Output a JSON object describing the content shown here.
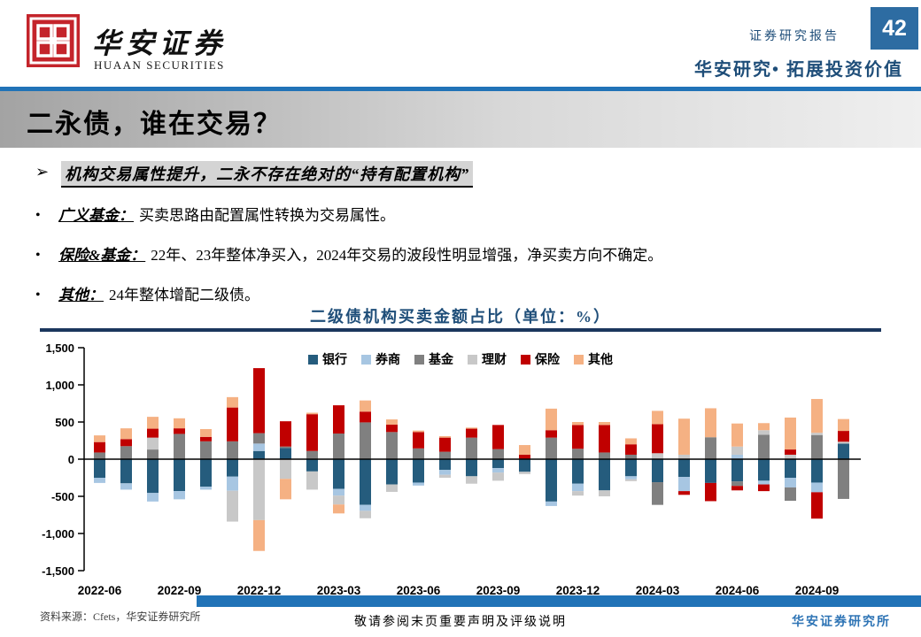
{
  "header": {
    "brand_cn": "华安证券",
    "brand_en": "HUAAN SECURITIES",
    "report_type": "证券研究报告",
    "page_number": "42",
    "tagline": "华安研究• 拓展投资价值"
  },
  "title": "二永债，谁在交易？",
  "bullets": {
    "lead_marker": "➢",
    "lead": "机构交易属性提升，二永不存在绝对的“持有配置机构”",
    "dot": "•",
    "items": [
      {
        "label": "广义基金：",
        "text": "买卖思路由配置属性转换为交易属性。"
      },
      {
        "label": "保险&基金：",
        "text": "22年、23年整体净买入，2024年交易的波段性明显增强，净买卖方向不确定。"
      },
      {
        "label": "其他：",
        "text": "24年整体增配二级债。"
      }
    ]
  },
  "chart_data": {
    "type": "bar",
    "stacked": true,
    "title": "二级债机构买卖金额占比（单位：%）",
    "ylim": [
      -1500,
      1500
    ],
    "y_ticks": [
      1500,
      1000,
      500,
      0,
      -500,
      -1000,
      -1500
    ],
    "y_tick_labels": [
      "1,500",
      "1,000",
      "500",
      "0",
      "-500",
      "-1,000",
      "-1,500"
    ],
    "grid": false,
    "legend_position": "top",
    "categories": [
      "2022-06",
      "2022-07",
      "2022-08",
      "2022-09",
      "2022-10",
      "2022-11",
      "2022-12",
      "2023-01",
      "2023-02",
      "2023-03",
      "2023-04",
      "2023-05",
      "2023-06",
      "2023-07",
      "2023-08",
      "2023-09",
      "2023-10",
      "2023-11",
      "2023-12",
      "2024-01",
      "2024-02",
      "2024-03",
      "2024-04",
      "2024-05",
      "2024-06",
      "2024-07",
      "2024-08",
      "2024-09",
      "2024-10"
    ],
    "x_tick_labels": [
      "2022-06",
      "2022-09",
      "2022-12",
      "2023-03",
      "2023-06",
      "2023-09",
      "2023-12",
      "2024-03",
      "2024-06",
      "2024-09"
    ],
    "series": [
      {
        "name": "银行",
        "color": "#255C7D",
        "values": [
          -250,
          -325,
          -455,
          -430,
          -370,
          -235,
          110,
          150,
          -165,
          -400,
          -615,
          -340,
          -315,
          -145,
          -230,
          -120,
          -170,
          -570,
          -330,
          -420,
          -230,
          -310,
          -240,
          -320,
          -300,
          -290,
          -250,
          -315,
          210
        ]
      },
      {
        "name": "券商",
        "color": "#A7C6E2",
        "values": [
          -70,
          -85,
          -115,
          -110,
          -40,
          -190,
          100,
          0,
          0,
          -90,
          -80,
          0,
          -40,
          -65,
          0,
          -60,
          0,
          -60,
          -100,
          0,
          -40,
          0,
          -190,
          0,
          60,
          -50,
          -130,
          -130,
          0
        ]
      },
      {
        "name": "基金",
        "color": "#808080",
        "values": [
          90,
          175,
          130,
          340,
          240,
          240,
          140,
          20,
          110,
          345,
          495,
          365,
          145,
          100,
          290,
          135,
          0,
          290,
          140,
          90,
          60,
          -305,
          0,
          295,
          -60,
          330,
          -180,
          325,
          -535
        ]
      },
      {
        "name": "理财",
        "color": "#C8C8C8",
        "values": [
          0,
          0,
          160,
          0,
          0,
          -415,
          -820,
          -265,
          -245,
          -120,
          -100,
          -100,
          0,
          -40,
          -100,
          -110,
          -30,
          0,
          -60,
          -80,
          -25,
          80,
          60,
          0,
          110,
          60,
          60,
          30,
          25
        ]
      },
      {
        "name": "保险",
        "color": "#C00000",
        "values": [
          140,
          95,
          120,
          75,
          60,
          455,
          875,
          340,
          495,
          380,
          145,
          100,
          220,
          190,
          120,
          325,
          60,
          100,
          320,
          370,
          140,
          390,
          -50,
          -245,
          -60,
          -90,
          70,
          -355,
          145
        ]
      },
      {
        "name": "其他",
        "color": "#F5B183",
        "values": [
          90,
          145,
          160,
          135,
          105,
          140,
          -415,
          -275,
          20,
          -120,
          150,
          70,
          20,
          20,
          15,
          0,
          130,
          290,
          40,
          40,
          80,
          180,
          485,
          390,
          310,
          95,
          430,
          455,
          160
        ]
      }
    ]
  },
  "footer": {
    "source": "资料来源：Cfets，华安证券研究所",
    "disclaimer": "敬请参阅末页重要声明及评级说明",
    "institute": "华安证券研究所"
  }
}
